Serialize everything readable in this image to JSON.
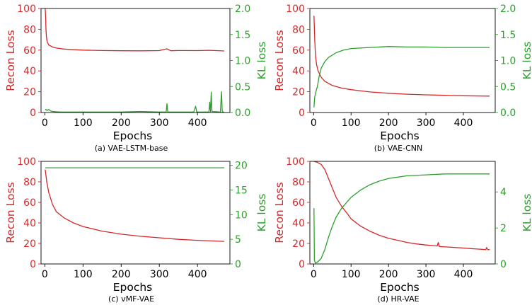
{
  "colors": {
    "recon": "#d62728",
    "kl": "#2ca02c"
  },
  "chart_data": [
    {
      "type": "line",
      "caption": "(a) VAE-LSTM-base",
      "xlabel": "Epochs",
      "ylabel_left": "Recon Loss",
      "ylabel_right": "KL loss",
      "xlim": [
        -10,
        485
      ],
      "ylim_left": [
        0,
        100
      ],
      "ylim_right": [
        0,
        2.0
      ],
      "x_ticks": [
        "0",
        "100",
        "200",
        "300",
        "400"
      ],
      "y_left_ticks": [
        "0",
        "20",
        "40",
        "60",
        "80",
        "100"
      ],
      "y_right_ticks": [
        "0.0",
        "0.5",
        "1.0",
        "1.5",
        "2.0"
      ],
      "series": [
        {
          "axis": "left",
          "color": "#d62728",
          "points": [
            [
              1,
              100
            ],
            [
              2,
              92
            ],
            [
              3,
              80
            ],
            [
              4,
              73
            ],
            [
              6,
              68
            ],
            [
              10,
              65
            ],
            [
              20,
              63
            ],
            [
              30,
              62
            ],
            [
              50,
              61
            ],
            [
              75,
              60.4
            ],
            [
              100,
              60
            ],
            [
              150,
              59.6
            ],
            [
              200,
              59.4
            ],
            [
              250,
              59.3
            ],
            [
              300,
              59.5
            ],
            [
              310,
              60.5
            ],
            [
              320,
              61.2
            ],
            [
              330,
              59.4
            ],
            [
              350,
              59.6
            ],
            [
              400,
              59.5
            ],
            [
              430,
              59.8
            ],
            [
              450,
              59.5
            ],
            [
              470,
              59.2
            ]
          ]
        },
        {
          "axis": "right",
          "color": "#2ca02c",
          "points": [
            [
              1,
              0.05
            ],
            [
              3,
              0.06
            ],
            [
              6,
              0.04
            ],
            [
              10,
              0.06
            ],
            [
              15,
              0.03
            ],
            [
              20,
              0.02
            ],
            [
              40,
              0.01
            ],
            [
              100,
              0.01
            ],
            [
              200,
              0.01
            ],
            [
              250,
              0.02
            ],
            [
              300,
              0.01
            ],
            [
              318,
              0.01
            ],
            [
              320,
              0.17
            ],
            [
              322,
              0.01
            ],
            [
              390,
              0.01
            ],
            [
              395,
              0.12
            ],
            [
              398,
              0.01
            ],
            [
              430,
              0.01
            ],
            [
              432,
              0.2
            ],
            [
              434,
              0.01
            ],
            [
              436,
              0.39
            ],
            [
              438,
              0.02
            ],
            [
              460,
              0.01
            ],
            [
              463,
              0.4
            ],
            [
              465,
              0.01
            ],
            [
              470,
              0.01
            ]
          ]
        }
      ]
    },
    {
      "type": "line",
      "caption": "(b) VAE-CNN",
      "xlabel": "Epochs",
      "ylabel_left": "Recon Loss",
      "ylabel_right": "KL loss",
      "xlim": [
        -10,
        485
      ],
      "ylim_left": [
        0,
        100
      ],
      "ylim_right": [
        0,
        2.0
      ],
      "x_ticks": [
        "0",
        "100",
        "200",
        "300",
        "400"
      ],
      "y_left_ticks": [
        "0",
        "20",
        "40",
        "60",
        "80",
        "100"
      ],
      "y_right_ticks": [
        "0.0",
        "0.5",
        "1.0",
        "1.5",
        "2.0"
      ],
      "series": [
        {
          "axis": "left",
          "color": "#d62728",
          "points": [
            [
              1,
              93
            ],
            [
              3,
              70
            ],
            [
              5,
              55
            ],
            [
              8,
              46
            ],
            [
              12,
              40
            ],
            [
              20,
              34
            ],
            [
              30,
              30
            ],
            [
              50,
              26
            ],
            [
              75,
              23.5
            ],
            [
              100,
              22
            ],
            [
              150,
              19.8
            ],
            [
              200,
              18.5
            ],
            [
              250,
              17.6
            ],
            [
              300,
              17
            ],
            [
              350,
              16.5
            ],
            [
              400,
              16.1
            ],
            [
              470,
              15.8
            ]
          ]
        },
        {
          "axis": "right",
          "color": "#2ca02c",
          "points": [
            [
              1,
              0.1
            ],
            [
              3,
              0.3
            ],
            [
              6,
              0.4
            ],
            [
              10,
              0.5
            ],
            [
              15,
              0.7
            ],
            [
              20,
              0.85
            ],
            [
              30,
              0.98
            ],
            [
              40,
              1.06
            ],
            [
              60,
              1.15
            ],
            [
              80,
              1.2
            ],
            [
              100,
              1.23
            ],
            [
              150,
              1.25
            ],
            [
              200,
              1.27
            ],
            [
              250,
              1.26
            ],
            [
              300,
              1.26
            ],
            [
              350,
              1.25
            ],
            [
              400,
              1.25
            ],
            [
              470,
              1.25
            ]
          ]
        }
      ]
    },
    {
      "type": "line",
      "caption": "(c) vMF-VAE",
      "xlabel": "Epochs",
      "ylabel_left": "Recon Loss",
      "ylabel_right": "KL loss",
      "xlim": [
        -10,
        485
      ],
      "ylim_left": [
        0,
        100
      ],
      "ylim_right": [
        0,
        20.8
      ],
      "x_ticks": [
        "0",
        "100",
        "200",
        "300",
        "400"
      ],
      "y_left_ticks": [
        "0",
        "20",
        "40",
        "60",
        "80",
        "100"
      ],
      "y_right_ticks": [
        "0",
        "5",
        "10",
        "15",
        "20"
      ],
      "series": [
        {
          "axis": "left",
          "color": "#d62728",
          "points": [
            [
              1,
              92
            ],
            [
              5,
              80
            ],
            [
              10,
              70
            ],
            [
              20,
              58
            ],
            [
              30,
              51
            ],
            [
              50,
              45
            ],
            [
              75,
              40
            ],
            [
              100,
              36.5
            ],
            [
              150,
              32
            ],
            [
              200,
              29
            ],
            [
              250,
              27
            ],
            [
              300,
              25.5
            ],
            [
              350,
              24
            ],
            [
              400,
              23
            ],
            [
              470,
              22
            ]
          ]
        },
        {
          "axis": "right",
          "color": "#2ca02c",
          "points": [
            [
              1,
              19.5
            ],
            [
              100,
              19.5
            ],
            [
              200,
              19.5
            ],
            [
              300,
              19.5
            ],
            [
              400,
              19.5
            ],
            [
              470,
              19.5
            ]
          ]
        }
      ]
    },
    {
      "type": "line",
      "caption": "(d) HR-VAE",
      "xlabel": "Epochs",
      "ylabel_left": "Recon Loss",
      "ylabel_right": "KL loss",
      "xlim": [
        -10,
        485
      ],
      "ylim_left": [
        0,
        100
      ],
      "ylim_right": [
        0,
        5.7
      ],
      "x_ticks": [
        "0",
        "100",
        "200",
        "300",
        "400"
      ],
      "y_left_ticks": [
        "0",
        "20",
        "40",
        "60",
        "80",
        "100"
      ],
      "y_right_ticks": [
        "0",
        "2",
        "4"
      ],
      "series": [
        {
          "axis": "left",
          "color": "#d62728",
          "points": [
            [
              1,
              100
            ],
            [
              10,
              99
            ],
            [
              20,
              97
            ],
            [
              30,
              92
            ],
            [
              40,
              83
            ],
            [
              50,
              74
            ],
            [
              60,
              65
            ],
            [
              75,
              56
            ],
            [
              90,
              49
            ],
            [
              100,
              44
            ],
            [
              125,
              37
            ],
            [
              150,
              32
            ],
            [
              175,
              28
            ],
            [
              200,
              25
            ],
            [
              225,
              23
            ],
            [
              250,
              21
            ],
            [
              275,
              19.5
            ],
            [
              300,
              18.5
            ],
            [
              330,
              17.5
            ],
            [
              333,
              21
            ],
            [
              336,
              17
            ],
            [
              360,
              16.5
            ],
            [
              400,
              15.5
            ],
            [
              420,
              15
            ],
            [
              440,
              14.5
            ],
            [
              460,
              14
            ],
            [
              462,
              16
            ],
            [
              465,
              14
            ],
            [
              470,
              14
            ]
          ]
        },
        {
          "axis": "right",
          "color": "#2ca02c",
          "points": [
            [
              1,
              3.1
            ],
            [
              2,
              0.2
            ],
            [
              5,
              0.05
            ],
            [
              10,
              0.1
            ],
            [
              20,
              0.3
            ],
            [
              30,
              0.8
            ],
            [
              40,
              1.5
            ],
            [
              50,
              2.1
            ],
            [
              60,
              2.6
            ],
            [
              75,
              3.1
            ],
            [
              100,
              3.7
            ],
            [
              125,
              4.1
            ],
            [
              150,
              4.4
            ],
            [
              175,
              4.6
            ],
            [
              200,
              4.75
            ],
            [
              250,
              4.9
            ],
            [
              300,
              4.95
            ],
            [
              350,
              5.0
            ],
            [
              400,
              5.0
            ],
            [
              470,
              5.0
            ]
          ]
        }
      ]
    }
  ]
}
